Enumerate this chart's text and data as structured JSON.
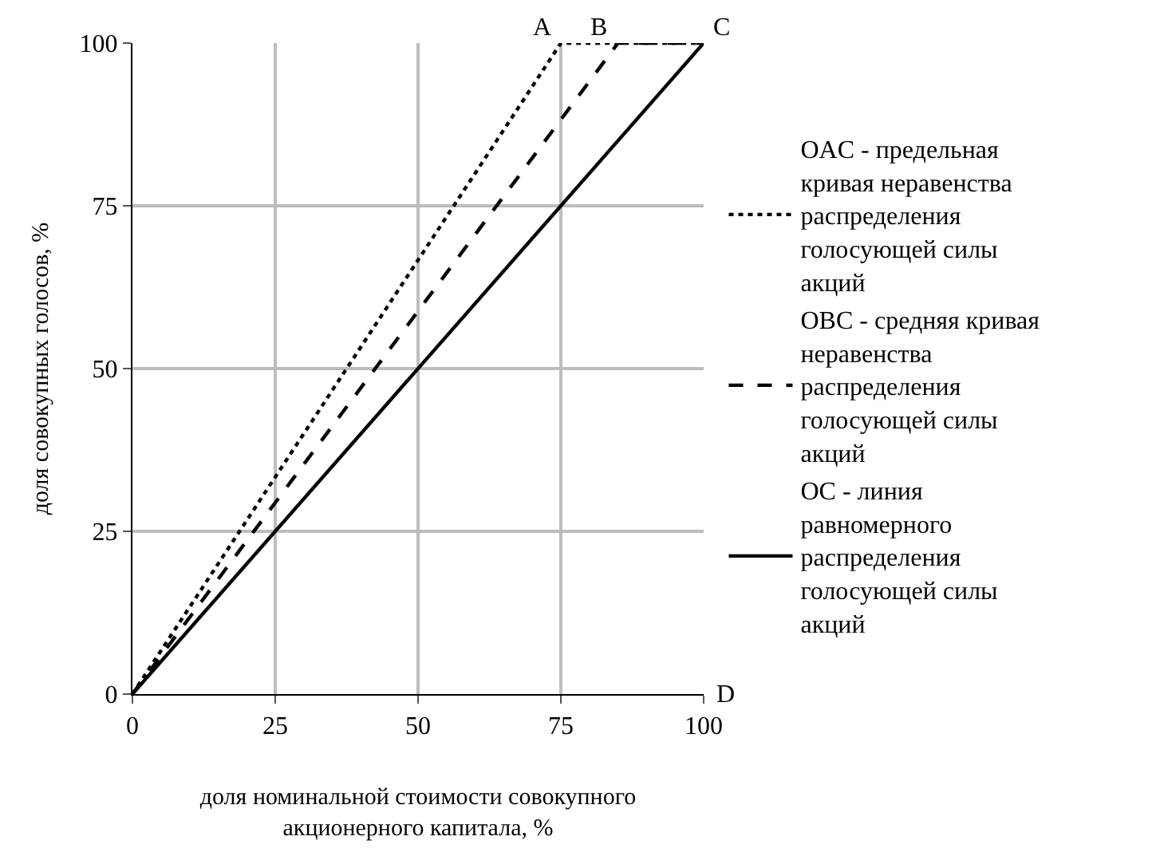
{
  "chart_data": {
    "type": "line",
    "xlabel": "доля номинальной стоимости совокупного акционерного капитала, %",
    "ylabel": "доля совокупных голосов, %",
    "series": [
      {
        "name": "OAC - предельная кривая неравенства распределения голосующей силы акций",
        "color": "#000000",
        "line_style": "dotted",
        "x": [
          0,
          75,
          100
        ],
        "values": [
          0,
          100,
          100
        ]
      },
      {
        "name": "OBC - средняя кривая неравенства распределения голосующей силы акций",
        "color": "#000000",
        "line_style": "dashed",
        "x": [
          0,
          85,
          100
        ],
        "values": [
          0,
          100,
          100
        ]
      },
      {
        "name": "OC - линия равномерного распределения голосующей силы акций",
        "color": "#000000",
        "line_style": "solid",
        "x": [
          0,
          100
        ],
        "values": [
          0,
          100
        ]
      }
    ],
    "annotations": [
      {
        "text": "A",
        "x": 75,
        "y": 100
      },
      {
        "text": "B",
        "x": 85,
        "y": 100
      },
      {
        "text": "C",
        "x": 100,
        "y": 100
      },
      "D"
    ],
    "xlim": [
      0,
      100
    ],
    "ylim": [
      0,
      100
    ],
    "xticks": [
      0,
      25,
      50,
      75,
      100
    ],
    "yticks": [
      0,
      25,
      50,
      75,
      100
    ],
    "grid": true,
    "legend": "right",
    "marker": "none"
  }
}
